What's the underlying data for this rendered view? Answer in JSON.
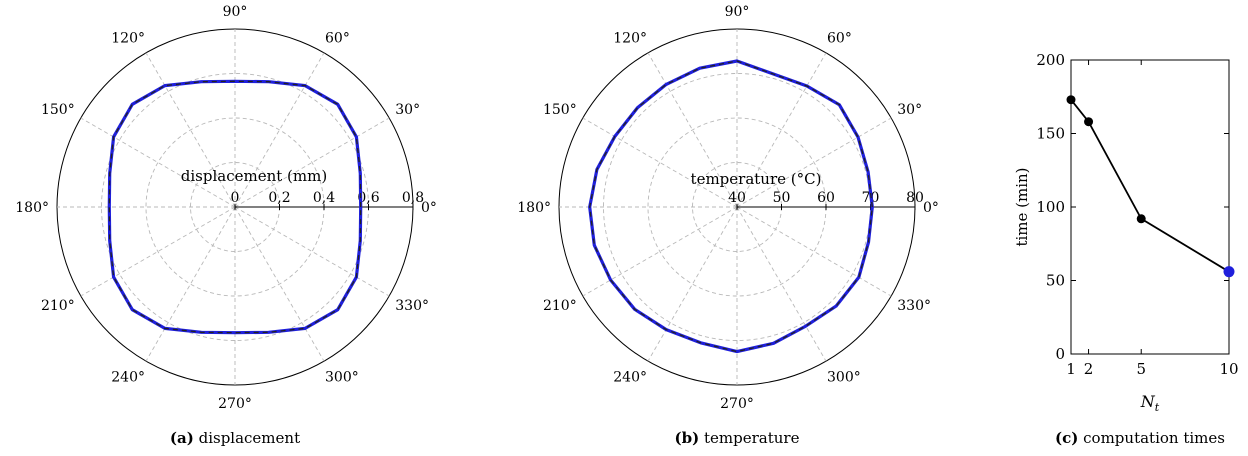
{
  "chart_data": [
    {
      "type": "polar-line",
      "axis_label": "displacement (mm)",
      "r_range": [
        0,
        0.8
      ],
      "r_ticks": [
        "0",
        "0,2",
        "0,4",
        "0,6",
        "0,8"
      ],
      "theta_ticks": [
        "0°",
        "30°",
        "60°",
        "90°",
        "120°",
        "150°",
        "180°",
        "210°",
        "240°",
        "270°",
        "300°",
        "330°"
      ],
      "grid": true,
      "series": [
        {
          "color": "#1f1fdc",
          "overlay_color": "#222222",
          "theta": [
            0,
            15,
            30,
            45,
            60,
            75,
            90,
            105,
            120,
            135,
            150,
            165,
            180,
            195,
            210,
            225,
            240,
            255,
            270,
            285,
            300,
            315,
            330,
            345,
            360
          ],
          "r": [
            0.565,
            0.583,
            0.63,
            0.653,
            0.63,
            0.583,
            0.565,
            0.583,
            0.63,
            0.653,
            0.63,
            0.583,
            0.565,
            0.583,
            0.63,
            0.653,
            0.63,
            0.583,
            0.565,
            0.583,
            0.63,
            0.653,
            0.63,
            0.583,
            0.565
          ]
        }
      ],
      "caption_label": "(a)",
      "caption_text": "displacement"
    },
    {
      "type": "polar-line",
      "axis_label": "temperature (°C)",
      "r_range": [
        40,
        80
      ],
      "r_ticks": [
        "40",
        "50",
        "60",
        "70",
        "80"
      ],
      "theta_ticks": [
        "0°",
        "30°",
        "60°",
        "90°",
        "120°",
        "150°",
        "180°",
        "210°",
        "240°",
        "270°",
        "300°",
        "330°"
      ],
      "grid": true,
      "series": [
        {
          "color": "#1f1fdc",
          "overlay_color": "#222222",
          "theta": [
            0,
            15,
            30,
            45,
            60,
            75,
            90,
            105,
            120,
            135,
            150,
            165,
            180,
            195,
            210,
            225,
            240,
            255,
            270,
            285,
            300,
            315,
            330,
            345,
            360
          ],
          "r": [
            70.4,
            70.5,
            71.4,
            72.5,
            71.4,
            71.0,
            72.8,
            72.3,
            71.8,
            71.6,
            71.7,
            72.6,
            73.1,
            73.2,
            72.8,
            72.5,
            71.8,
            71.6,
            72.5,
            71.7,
            70.9,
            71.5,
            71.6,
            70.6,
            70.4
          ]
        }
      ],
      "caption_label": "(b)",
      "caption_text": "temperature"
    },
    {
      "type": "line",
      "xlabel": "N_t",
      "xlabel_main": "N",
      "xlabel_sub": "t",
      "ylabel": "time (min)",
      "xlim": [
        1,
        10
      ],
      "ylim": [
        0,
        200
      ],
      "x_ticks": [
        1,
        2,
        5,
        10
      ],
      "y_ticks": [
        0,
        50,
        100,
        150,
        200
      ],
      "series": [
        {
          "x": [
            1,
            2,
            5,
            10
          ],
          "y": [
            173,
            158,
            92,
            56
          ],
          "color": "#000000",
          "highlight_last_color": "#1f1fdc"
        }
      ],
      "caption_label": "(c)",
      "caption_text": "computation times"
    }
  ]
}
